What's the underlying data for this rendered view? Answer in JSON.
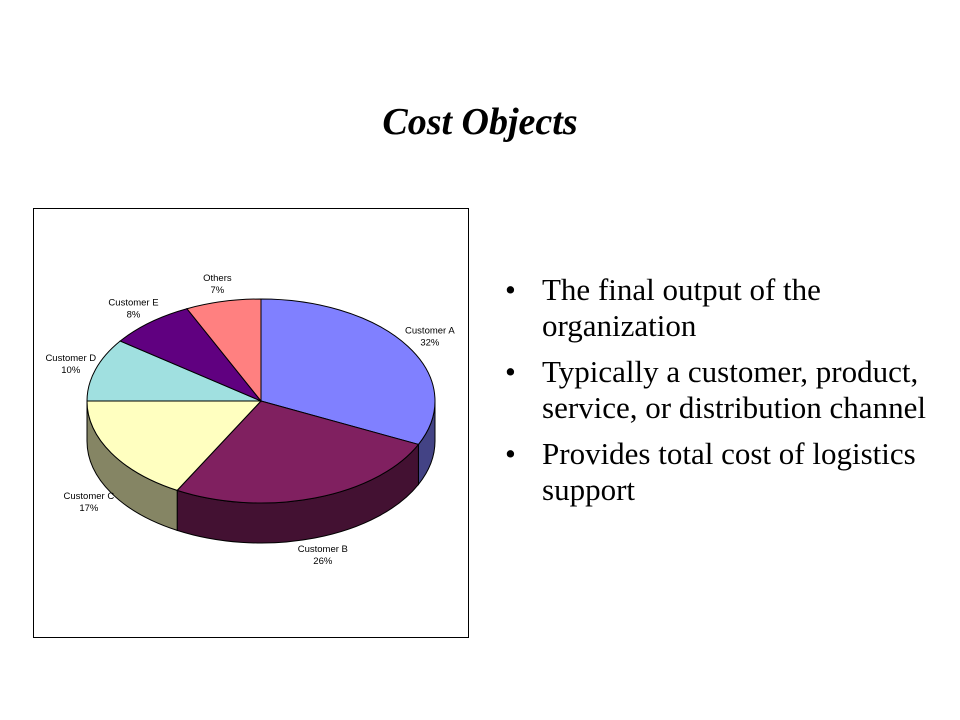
{
  "slide": {
    "title": "Cost Objects",
    "bullets": [
      {
        "symbol": "•",
        "text": "The final output of the organization"
      },
      {
        "symbol": "•",
        "text": "Typically a customer, product, service, or distribution channel"
      },
      {
        "symbol": "•",
        "text": "Provides total cost of logistics support"
      }
    ]
  },
  "chart_data": {
    "type": "pie",
    "title": "",
    "three_d": true,
    "legend": "none",
    "slices": [
      {
        "label": "Customer A",
        "pct_label": "32%",
        "value": 32,
        "color": "#8080ff"
      },
      {
        "label": "Customer B",
        "pct_label": "26%",
        "value": 26,
        "color": "#802060"
      },
      {
        "label": "Customer C",
        "pct_label": "17%",
        "value": 17,
        "color": "#ffffc0"
      },
      {
        "label": "Customer D",
        "pct_label": "10%",
        "value": 10,
        "color": "#a0e0e0"
      },
      {
        "label": "Customer E",
        "pct_label": "8%",
        "value": 8,
        "color": "#600080"
      },
      {
        "label": "Others",
        "pct_label": "7%",
        "value": 7,
        "color": "#ff8080"
      }
    ]
  }
}
